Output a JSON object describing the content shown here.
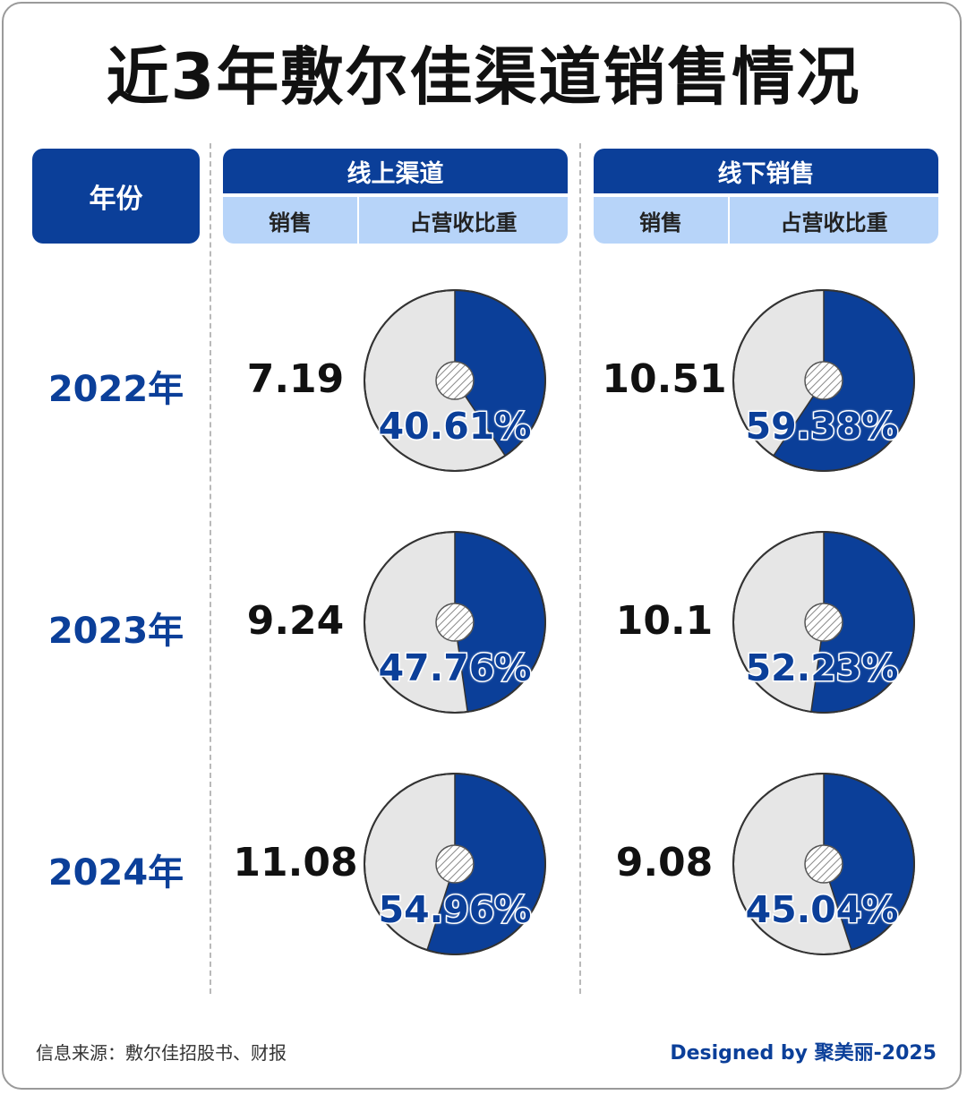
{
  "title": "近3年敷尔佳渠道销售情况",
  "header": {
    "year_label": "年份",
    "online_label": "线上渠道",
    "offline_label": "线下销售",
    "sales_label": "销售",
    "share_label": "占营收比重"
  },
  "rows": [
    {
      "year": "2022年",
      "online_sales": "7.19",
      "online_share": "40.61%",
      "offline_sales": "10.51",
      "offline_share": "59.38%"
    },
    {
      "year": "2023年",
      "online_sales": "9.24",
      "online_share": "47.76%",
      "offline_sales": "10.1",
      "offline_share": "52.23%"
    },
    {
      "year": "2024年",
      "online_sales": "11.08",
      "online_share": "54.96%",
      "offline_sales": "9.08",
      "offline_share": "45.04%"
    }
  ],
  "footer": {
    "source": "信息来源：敷尔佳招股书、财报",
    "credit": "Designed by 聚美丽-2025"
  },
  "colors": {
    "accent": "#0b3f99",
    "light_blue": "#b7d4f9",
    "donut_rest": "#e6e6e6"
  },
  "chart_data": {
    "type": "pie",
    "categories": [
      "2022年",
      "2023年",
      "2024年"
    ],
    "series": [
      {
        "name": "线上渠道",
        "sales": [
          7.19,
          9.24,
          11.08
        ],
        "share_percent": [
          40.61,
          47.76,
          54.96
        ]
      },
      {
        "name": "线下销售",
        "sales": [
          10.51,
          10.1,
          9.08
        ],
        "share_percent": [
          59.38,
          52.23,
          45.04
        ]
      }
    ]
  }
}
